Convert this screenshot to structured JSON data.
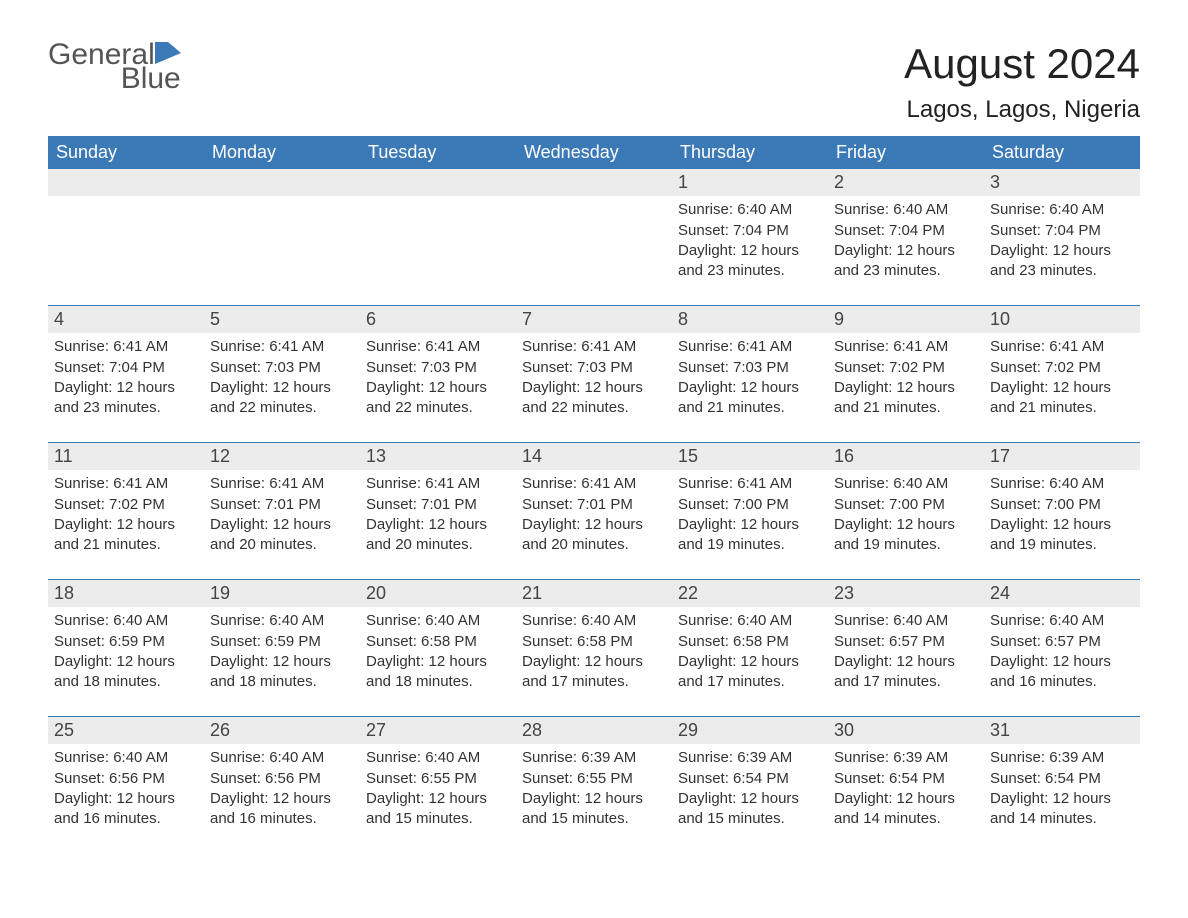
{
  "brand": {
    "name_part1": "General",
    "name_part2": "Blue",
    "text_color": "#555555",
    "accent_color": "#3b79b7"
  },
  "header": {
    "title": "August 2024",
    "location": "Lagos, Lagos, Nigeria",
    "title_fontsize": 42,
    "location_fontsize": 24
  },
  "colors": {
    "header_row_bg": "#3b79b7",
    "header_row_text": "#ffffff",
    "daynum_bg": "#ececec",
    "body_text": "#333333",
    "week_divider": "#3b79b7",
    "page_bg": "#ffffff"
  },
  "calendar": {
    "day_headers": [
      "Sunday",
      "Monday",
      "Tuesday",
      "Wednesday",
      "Thursday",
      "Friday",
      "Saturday"
    ],
    "weeks": [
      [
        {
          "day": "",
          "sunrise": "",
          "sunset": "",
          "daylight_l1": "",
          "daylight_l2": ""
        },
        {
          "day": "",
          "sunrise": "",
          "sunset": "",
          "daylight_l1": "",
          "daylight_l2": ""
        },
        {
          "day": "",
          "sunrise": "",
          "sunset": "",
          "daylight_l1": "",
          "daylight_l2": ""
        },
        {
          "day": "",
          "sunrise": "",
          "sunset": "",
          "daylight_l1": "",
          "daylight_l2": ""
        },
        {
          "day": "1",
          "sunrise": "Sunrise: 6:40 AM",
          "sunset": "Sunset: 7:04 PM",
          "daylight_l1": "Daylight: 12 hours",
          "daylight_l2": "and 23 minutes."
        },
        {
          "day": "2",
          "sunrise": "Sunrise: 6:40 AM",
          "sunset": "Sunset: 7:04 PM",
          "daylight_l1": "Daylight: 12 hours",
          "daylight_l2": "and 23 minutes."
        },
        {
          "day": "3",
          "sunrise": "Sunrise: 6:40 AM",
          "sunset": "Sunset: 7:04 PM",
          "daylight_l1": "Daylight: 12 hours",
          "daylight_l2": "and 23 minutes."
        }
      ],
      [
        {
          "day": "4",
          "sunrise": "Sunrise: 6:41 AM",
          "sunset": "Sunset: 7:04 PM",
          "daylight_l1": "Daylight: 12 hours",
          "daylight_l2": "and 23 minutes."
        },
        {
          "day": "5",
          "sunrise": "Sunrise: 6:41 AM",
          "sunset": "Sunset: 7:03 PM",
          "daylight_l1": "Daylight: 12 hours",
          "daylight_l2": "and 22 minutes."
        },
        {
          "day": "6",
          "sunrise": "Sunrise: 6:41 AM",
          "sunset": "Sunset: 7:03 PM",
          "daylight_l1": "Daylight: 12 hours",
          "daylight_l2": "and 22 minutes."
        },
        {
          "day": "7",
          "sunrise": "Sunrise: 6:41 AM",
          "sunset": "Sunset: 7:03 PM",
          "daylight_l1": "Daylight: 12 hours",
          "daylight_l2": "and 22 minutes."
        },
        {
          "day": "8",
          "sunrise": "Sunrise: 6:41 AM",
          "sunset": "Sunset: 7:03 PM",
          "daylight_l1": "Daylight: 12 hours",
          "daylight_l2": "and 21 minutes."
        },
        {
          "day": "9",
          "sunrise": "Sunrise: 6:41 AM",
          "sunset": "Sunset: 7:02 PM",
          "daylight_l1": "Daylight: 12 hours",
          "daylight_l2": "and 21 minutes."
        },
        {
          "day": "10",
          "sunrise": "Sunrise: 6:41 AM",
          "sunset": "Sunset: 7:02 PM",
          "daylight_l1": "Daylight: 12 hours",
          "daylight_l2": "and 21 minutes."
        }
      ],
      [
        {
          "day": "11",
          "sunrise": "Sunrise: 6:41 AM",
          "sunset": "Sunset: 7:02 PM",
          "daylight_l1": "Daylight: 12 hours",
          "daylight_l2": "and 21 minutes."
        },
        {
          "day": "12",
          "sunrise": "Sunrise: 6:41 AM",
          "sunset": "Sunset: 7:01 PM",
          "daylight_l1": "Daylight: 12 hours",
          "daylight_l2": "and 20 minutes."
        },
        {
          "day": "13",
          "sunrise": "Sunrise: 6:41 AM",
          "sunset": "Sunset: 7:01 PM",
          "daylight_l1": "Daylight: 12 hours",
          "daylight_l2": "and 20 minutes."
        },
        {
          "day": "14",
          "sunrise": "Sunrise: 6:41 AM",
          "sunset": "Sunset: 7:01 PM",
          "daylight_l1": "Daylight: 12 hours",
          "daylight_l2": "and 20 minutes."
        },
        {
          "day": "15",
          "sunrise": "Sunrise: 6:41 AM",
          "sunset": "Sunset: 7:00 PM",
          "daylight_l1": "Daylight: 12 hours",
          "daylight_l2": "and 19 minutes."
        },
        {
          "day": "16",
          "sunrise": "Sunrise: 6:40 AM",
          "sunset": "Sunset: 7:00 PM",
          "daylight_l1": "Daylight: 12 hours",
          "daylight_l2": "and 19 minutes."
        },
        {
          "day": "17",
          "sunrise": "Sunrise: 6:40 AM",
          "sunset": "Sunset: 7:00 PM",
          "daylight_l1": "Daylight: 12 hours",
          "daylight_l2": "and 19 minutes."
        }
      ],
      [
        {
          "day": "18",
          "sunrise": "Sunrise: 6:40 AM",
          "sunset": "Sunset: 6:59 PM",
          "daylight_l1": "Daylight: 12 hours",
          "daylight_l2": "and 18 minutes."
        },
        {
          "day": "19",
          "sunrise": "Sunrise: 6:40 AM",
          "sunset": "Sunset: 6:59 PM",
          "daylight_l1": "Daylight: 12 hours",
          "daylight_l2": "and 18 minutes."
        },
        {
          "day": "20",
          "sunrise": "Sunrise: 6:40 AM",
          "sunset": "Sunset: 6:58 PM",
          "daylight_l1": "Daylight: 12 hours",
          "daylight_l2": "and 18 minutes."
        },
        {
          "day": "21",
          "sunrise": "Sunrise: 6:40 AM",
          "sunset": "Sunset: 6:58 PM",
          "daylight_l1": "Daylight: 12 hours",
          "daylight_l2": "and 17 minutes."
        },
        {
          "day": "22",
          "sunrise": "Sunrise: 6:40 AM",
          "sunset": "Sunset: 6:58 PM",
          "daylight_l1": "Daylight: 12 hours",
          "daylight_l2": "and 17 minutes."
        },
        {
          "day": "23",
          "sunrise": "Sunrise: 6:40 AM",
          "sunset": "Sunset: 6:57 PM",
          "daylight_l1": "Daylight: 12 hours",
          "daylight_l2": "and 17 minutes."
        },
        {
          "day": "24",
          "sunrise": "Sunrise: 6:40 AM",
          "sunset": "Sunset: 6:57 PM",
          "daylight_l1": "Daylight: 12 hours",
          "daylight_l2": "and 16 minutes."
        }
      ],
      [
        {
          "day": "25",
          "sunrise": "Sunrise: 6:40 AM",
          "sunset": "Sunset: 6:56 PM",
          "daylight_l1": "Daylight: 12 hours",
          "daylight_l2": "and 16 minutes."
        },
        {
          "day": "26",
          "sunrise": "Sunrise: 6:40 AM",
          "sunset": "Sunset: 6:56 PM",
          "daylight_l1": "Daylight: 12 hours",
          "daylight_l2": "and 16 minutes."
        },
        {
          "day": "27",
          "sunrise": "Sunrise: 6:40 AM",
          "sunset": "Sunset: 6:55 PM",
          "daylight_l1": "Daylight: 12 hours",
          "daylight_l2": "and 15 minutes."
        },
        {
          "day": "28",
          "sunrise": "Sunrise: 6:39 AM",
          "sunset": "Sunset: 6:55 PM",
          "daylight_l1": "Daylight: 12 hours",
          "daylight_l2": "and 15 minutes."
        },
        {
          "day": "29",
          "sunrise": "Sunrise: 6:39 AM",
          "sunset": "Sunset: 6:54 PM",
          "daylight_l1": "Daylight: 12 hours",
          "daylight_l2": "and 15 minutes."
        },
        {
          "day": "30",
          "sunrise": "Sunrise: 6:39 AM",
          "sunset": "Sunset: 6:54 PM",
          "daylight_l1": "Daylight: 12 hours",
          "daylight_l2": "and 14 minutes."
        },
        {
          "day": "31",
          "sunrise": "Sunrise: 6:39 AM",
          "sunset": "Sunset: 6:54 PM",
          "daylight_l1": "Daylight: 12 hours",
          "daylight_l2": "and 14 minutes."
        }
      ]
    ]
  }
}
